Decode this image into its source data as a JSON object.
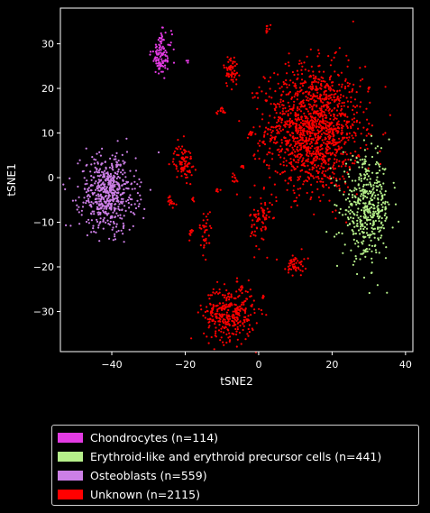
{
  "chart_data": {
    "type": "scatter",
    "title": "",
    "xlabel": "tSNE2",
    "ylabel": "tSNE1",
    "xlim": [
      -54,
      42
    ],
    "ylim": [
      -39,
      38
    ],
    "xticks": [
      -40,
      -20,
      0,
      20,
      40
    ],
    "yticks": [
      -30,
      -20,
      -10,
      0,
      10,
      20,
      30
    ],
    "grid": false,
    "background": "#000000",
    "legend_position": "bottom-center",
    "series": [
      {
        "name": "Chondrocytes (n=114)",
        "color": "#e33be3",
        "count": 114,
        "clusters": [
          {
            "cx": -26.5,
            "cy": 27.5,
            "sx": 1.4,
            "sy": 2.4,
            "n": 110
          },
          {
            "cx": -19.5,
            "cy": 26.0,
            "sx": 0.4,
            "sy": 0.3,
            "n": 4
          }
        ]
      },
      {
        "name": "Erythroid-like and erythroid precursor cells (n=441)",
        "color": "#b6f08a",
        "count": 441,
        "clusters": [
          {
            "cx": 29.5,
            "cy": -7.0,
            "sx": 3.3,
            "sy": 5.5,
            "n": 441
          }
        ]
      },
      {
        "name": "Osteoblasts (n=559)",
        "color": "#cc7fe6",
        "count": 559,
        "clusters": [
          {
            "cx": -41.0,
            "cy": -3.5,
            "sx": 3.8,
            "sy": 4.2,
            "n": 559
          }
        ]
      },
      {
        "name": "Unknown (n=2115)",
        "color": "#ff0000",
        "count": 2115,
        "clusters": [
          {
            "cx": 15.0,
            "cy": 11.0,
            "sx": 6.5,
            "sy": 7.0,
            "n": 1380
          },
          {
            "cx": -8.0,
            "cy": -30.5,
            "sx": 3.5,
            "sy": 3.0,
            "n": 330
          },
          {
            "cx": -20.5,
            "cy": 3.5,
            "sx": 1.3,
            "sy": 2.0,
            "n": 90
          },
          {
            "cx": -7.5,
            "cy": 24.0,
            "sx": 1.0,
            "sy": 1.8,
            "n": 60
          },
          {
            "cx": 0.5,
            "cy": -10.0,
            "sx": 1.4,
            "sy": 3.0,
            "n": 70
          },
          {
            "cx": 10.0,
            "cy": -19.5,
            "sx": 1.2,
            "sy": 1.2,
            "n": 50
          },
          {
            "cx": -14.5,
            "cy": -12.0,
            "sx": 0.8,
            "sy": 2.2,
            "n": 35
          },
          {
            "cx": -10.0,
            "cy": 15.0,
            "sx": 0.8,
            "sy": 0.4,
            "n": 12
          },
          {
            "cx": 2.5,
            "cy": 33.5,
            "sx": 0.3,
            "sy": 0.6,
            "n": 8
          },
          {
            "cx": -6.5,
            "cy": 0.0,
            "sx": 0.4,
            "sy": 0.5,
            "n": 10
          },
          {
            "cx": -4.5,
            "cy": 2.5,
            "sx": 0.4,
            "sy": 0.3,
            "n": 8
          },
          {
            "cx": -24.0,
            "cy": -5.5,
            "sx": 0.8,
            "sy": 0.8,
            "n": 15
          },
          {
            "cx": -18.5,
            "cy": -12.5,
            "sx": 0.5,
            "sy": 0.6,
            "n": 10
          },
          {
            "cx": -2.0,
            "cy": 10.0,
            "sx": 0.4,
            "sy": 0.2,
            "n": 8
          },
          {
            "cx": -11.5,
            "cy": -3.0,
            "sx": 0.4,
            "sy": 0.4,
            "n": 6
          },
          {
            "cx": 1.0,
            "cy": -26.5,
            "sx": 0.3,
            "sy": 0.4,
            "n": 5
          },
          {
            "cx": -18.0,
            "cy": -5.0,
            "sx": 0.3,
            "sy": 0.3,
            "n": 5
          },
          {
            "cx": -4.5,
            "cy": -24.5,
            "sx": 0.3,
            "sy": 0.3,
            "n": 4
          },
          {
            "cx": 2.0,
            "cy": 17.0,
            "sx": 0.3,
            "sy": 0.3,
            "n": 4
          },
          {
            "cx": 30.0,
            "cy": 20.0,
            "sx": 0.4,
            "sy": 0.3,
            "n": 5
          }
        ]
      }
    ]
  }
}
